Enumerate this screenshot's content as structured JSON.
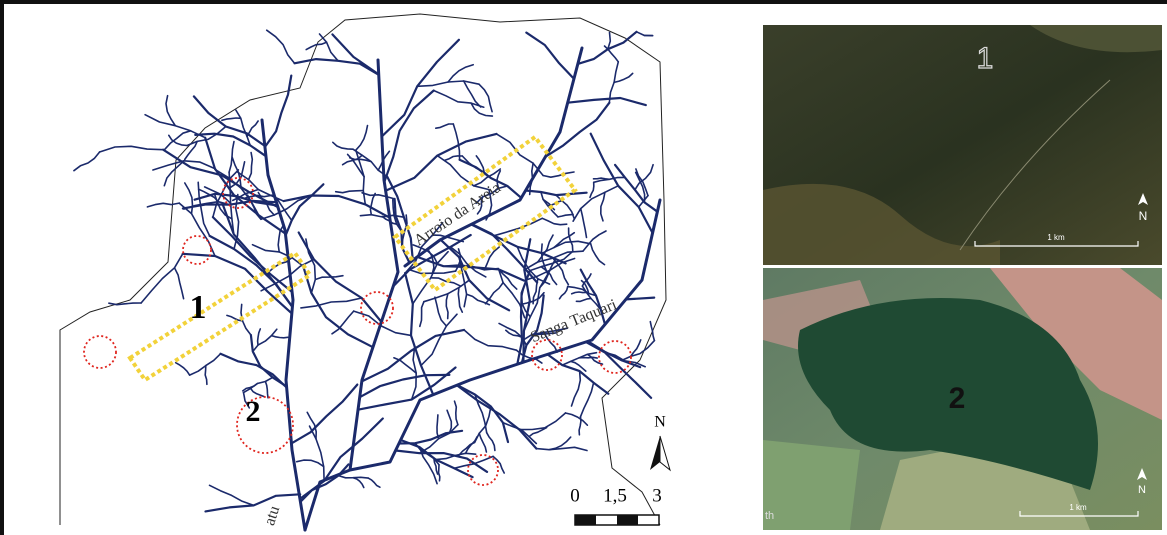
{
  "map": {
    "labels": {
      "area_1": "1",
      "area_2": "2",
      "river_1": "Arroio da Areia",
      "river_2": "Sanga Taquari",
      "river_3": "atu"
    },
    "north": "N",
    "scale": [
      "0",
      "1,5",
      "3"
    ]
  },
  "insets": [
    {
      "label": "1",
      "north": "N",
      "scale": "1 km"
    },
    {
      "label": "2",
      "north": "N",
      "scale": "1 km",
      "attribution": "th"
    }
  ]
}
